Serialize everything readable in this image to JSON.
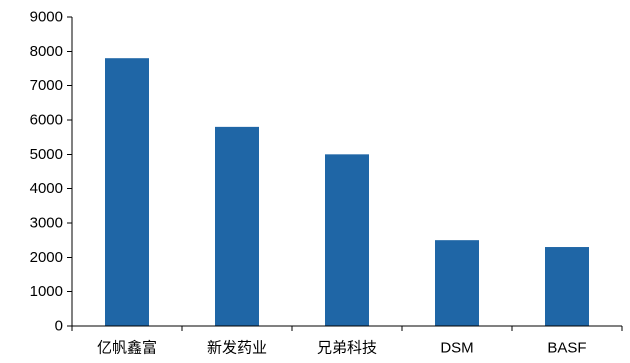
{
  "chart_data": {
    "type": "bar",
    "title": "",
    "xlabel": "",
    "ylabel": "",
    "categories": [
      "亿帆鑫富",
      "新发药业",
      "兄弟科技",
      "DSM",
      "BASF"
    ],
    "values": [
      7800,
      5800,
      5000,
      2500,
      2300
    ],
    "ylim": [
      0,
      9000
    ],
    "yticks": [
      0,
      1000,
      2000,
      3000,
      4000,
      5000,
      6000,
      7000,
      8000,
      9000
    ],
    "grid": false,
    "legend": "none",
    "bar_color": "#1f66a6"
  }
}
